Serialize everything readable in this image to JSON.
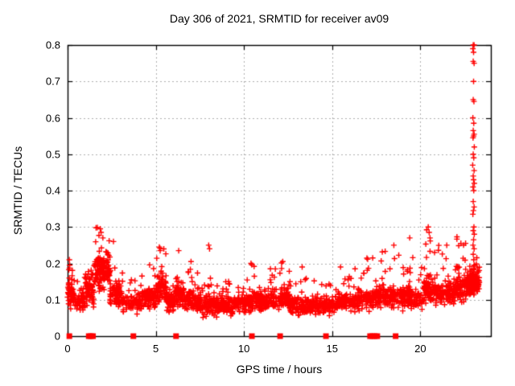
{
  "title": "Day 306 of 2021, SRMTID for receiver av09",
  "colors": {
    "marker": "#ff0000",
    "grid": "#b0b0b0",
    "axis": "#000000",
    "background": "#ffffff",
    "text": "#000000"
  },
  "chart_data": {
    "type": "scatter",
    "title": "Day 306 of 2021, SRMTID for receiver av09",
    "xlabel": "GPS time / hours",
    "ylabel": "SRMTID / TECUs",
    "xlim": [
      0,
      24
    ],
    "ylim": [
      0,
      0.8
    ],
    "xticks": {
      "values": [
        0,
        5,
        10,
        15,
        20
      ],
      "labels": [
        "0",
        "5",
        "10",
        "15",
        "20"
      ]
    },
    "yticks": {
      "values": [
        0,
        0.1,
        0.2,
        0.3,
        0.4,
        0.5,
        0.6,
        0.7,
        0.8
      ],
      "labels": [
        "0",
        "0.1",
        "0.2",
        "0.3",
        "0.4",
        "0.5",
        "0.6",
        "0.7",
        "0.8"
      ]
    },
    "grid": true,
    "legend": "none",
    "marker": "plus",
    "marker_color": "#ff0000",
    "seed": 1234567,
    "density_bands": [
      [
        0.0,
        0.35,
        60,
        0.05,
        0.11,
        0.21
      ],
      [
        0.35,
        1.0,
        55,
        0.04,
        0.09,
        0.17
      ],
      [
        1.0,
        1.5,
        70,
        0.05,
        0.12,
        0.2
      ],
      [
        1.5,
        2.4,
        150,
        0.08,
        0.17,
        0.3
      ],
      [
        2.4,
        3.1,
        80,
        0.05,
        0.11,
        0.26
      ],
      [
        3.1,
        4.2,
        90,
        0.04,
        0.09,
        0.18
      ],
      [
        4.2,
        5.0,
        90,
        0.05,
        0.1,
        0.21
      ],
      [
        5.0,
        5.6,
        70,
        0.05,
        0.12,
        0.25
      ],
      [
        5.6,
        6.1,
        60,
        0.04,
        0.09,
        0.14
      ],
      [
        6.1,
        6.6,
        70,
        0.05,
        0.11,
        0.24
      ],
      [
        6.6,
        7.6,
        110,
        0.04,
        0.09,
        0.2
      ],
      [
        7.6,
        9.6,
        220,
        0.03,
        0.08,
        0.16
      ],
      [
        9.6,
        10.7,
        110,
        0.04,
        0.09,
        0.2
      ],
      [
        10.7,
        12.0,
        130,
        0.04,
        0.09,
        0.19
      ],
      [
        12.0,
        12.6,
        70,
        0.05,
        0.1,
        0.21
      ],
      [
        12.6,
        14.6,
        200,
        0.04,
        0.08,
        0.17
      ],
      [
        14.6,
        15.3,
        70,
        0.04,
        0.08,
        0.16
      ],
      [
        15.3,
        16.6,
        130,
        0.05,
        0.09,
        0.19
      ],
      [
        16.6,
        17.8,
        120,
        0.05,
        0.1,
        0.22
      ],
      [
        17.8,
        19.0,
        110,
        0.05,
        0.1,
        0.25
      ],
      [
        19.0,
        20.2,
        110,
        0.05,
        0.1,
        0.22
      ],
      [
        20.2,
        20.8,
        80,
        0.06,
        0.12,
        0.3
      ],
      [
        20.8,
        22.0,
        130,
        0.05,
        0.11,
        0.25
      ],
      [
        22.0,
        22.8,
        110,
        0.06,
        0.13,
        0.28
      ],
      [
        22.8,
        23.35,
        120,
        0.07,
        0.14,
        0.22
      ]
    ],
    "outlier_points": [
      [
        0.1,
        0.21
      ],
      [
        0.12,
        0.195
      ],
      [
        1.85,
        0.295
      ],
      [
        1.9,
        0.285
      ],
      [
        2.0,
        0.27
      ],
      [
        2.6,
        0.26
      ],
      [
        5.2,
        0.245
      ],
      [
        5.25,
        0.235
      ],
      [
        6.3,
        0.235
      ],
      [
        7.0,
        0.205
      ],
      [
        8.0,
        0.25
      ],
      [
        8.05,
        0.24
      ],
      [
        10.4,
        0.2
      ],
      [
        11.5,
        0.185
      ],
      [
        12.2,
        0.205
      ],
      [
        13.3,
        0.19
      ],
      [
        16.3,
        0.185
      ],
      [
        17.3,
        0.215
      ],
      [
        18.5,
        0.25
      ],
      [
        19.4,
        0.27
      ],
      [
        20.45,
        0.3
      ],
      [
        20.5,
        0.285
      ],
      [
        20.55,
        0.27
      ],
      [
        21.5,
        0.25
      ],
      [
        22.3,
        0.255
      ]
    ],
    "spike_points": [
      [
        23.0,
        0.8
      ],
      [
        23.05,
        0.8
      ],
      [
        22.98,
        0.79
      ],
      [
        23.02,
        0.78
      ],
      [
        23.0,
        0.755
      ],
      [
        23.05,
        0.75
      ],
      [
        23.02,
        0.7
      ],
      [
        23.0,
        0.65
      ],
      [
        23.04,
        0.645
      ],
      [
        22.98,
        0.6
      ],
      [
        23.03,
        0.585
      ],
      [
        23.0,
        0.565
      ],
      [
        23.05,
        0.555
      ],
      [
        23.02,
        0.55
      ],
      [
        22.99,
        0.545
      ],
      [
        23.06,
        0.52
      ],
      [
        23.0,
        0.5
      ],
      [
        23.03,
        0.49
      ],
      [
        22.97,
        0.47
      ],
      [
        23.05,
        0.455
      ],
      [
        23.0,
        0.44
      ],
      [
        23.02,
        0.43
      ],
      [
        23.06,
        0.42
      ],
      [
        22.99,
        0.41
      ],
      [
        23.03,
        0.4
      ],
      [
        23.0,
        0.37
      ],
      [
        23.05,
        0.355
      ],
      [
        23.01,
        0.345
      ],
      [
        22.98,
        0.335
      ],
      [
        23.04,
        0.3
      ],
      [
        23.0,
        0.29
      ],
      [
        23.06,
        0.28
      ],
      [
        23.02,
        0.265
      ],
      [
        22.99,
        0.25
      ],
      [
        23.05,
        0.24
      ],
      [
        23.0,
        0.225
      ],
      [
        23.03,
        0.21
      ],
      [
        23.07,
        0.195
      ],
      [
        23.01,
        0.185
      ],
      [
        22.98,
        0.17
      ]
    ],
    "zero_line_markers": [
      0.1,
      1.2,
      1.32,
      1.44,
      3.73,
      6.15,
      10.45,
      12.05,
      14.65,
      17.15,
      17.28,
      17.42,
      17.56,
      18.6
    ]
  }
}
